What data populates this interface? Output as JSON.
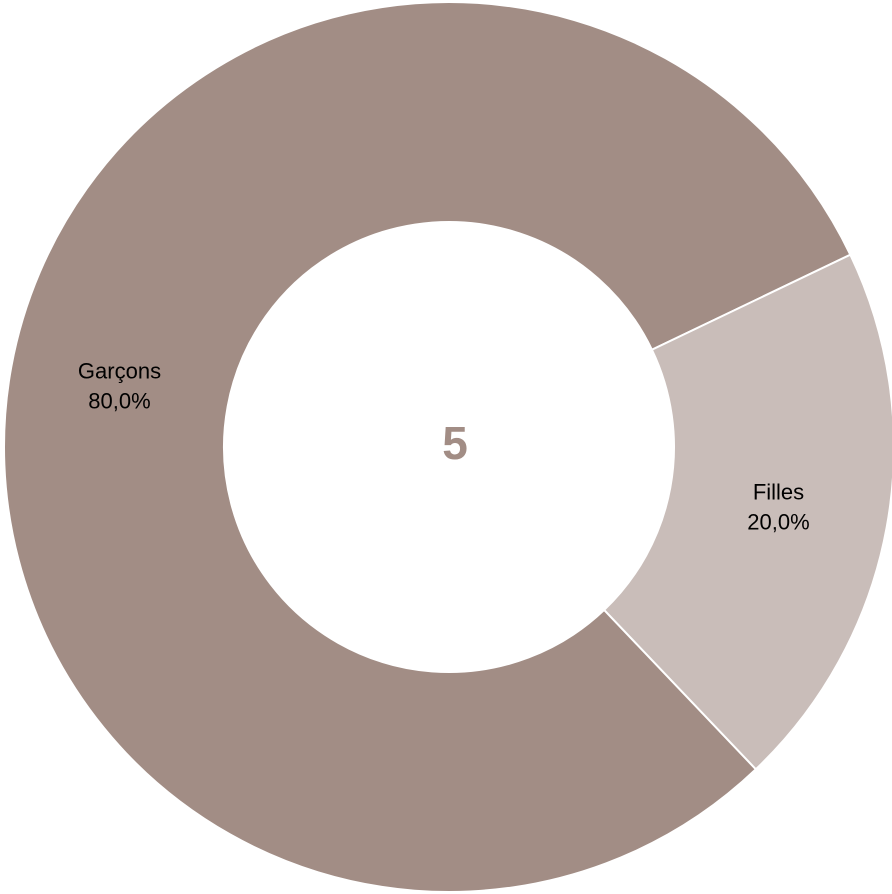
{
  "chart_data": {
    "type": "donut",
    "categories": [
      "Garçons",
      "Filles"
    ],
    "values": [
      80,
      20
    ],
    "value_labels": [
      "80,0%",
      "20,0%"
    ],
    "colors": [
      "#a28d85",
      "#c9bdb9"
    ],
    "total": 5
  }
}
